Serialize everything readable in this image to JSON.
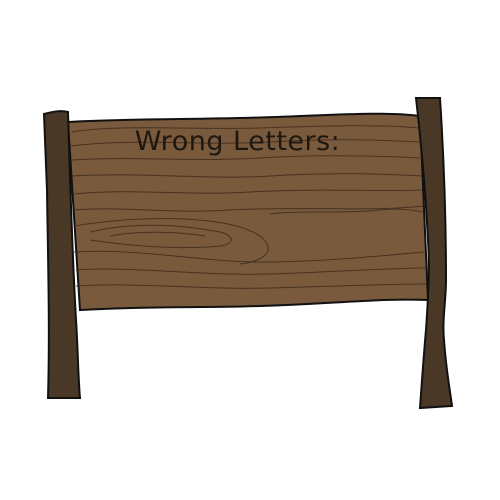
{
  "sign": {
    "title": "Wrong Letters:",
    "wrong_letters": ""
  },
  "colors": {
    "board": "#7a5a3c",
    "board_grain": "#3e2c1c",
    "post": "#4a3826",
    "outline": "#111111",
    "text": "#1e1810",
    "background": "#ffffff"
  }
}
